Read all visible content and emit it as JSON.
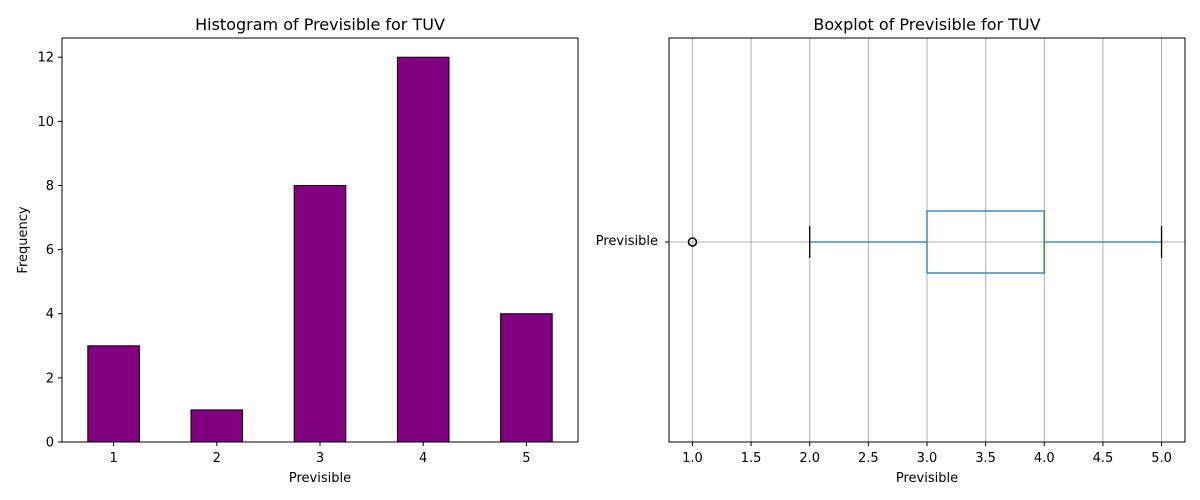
{
  "chart_data": [
    {
      "type": "bar",
      "title": "Histogram of Previsible for TUV",
      "xlabel": "Previsible",
      "ylabel": "Frequency",
      "categories": [
        "1",
        "2",
        "3",
        "4",
        "5"
      ],
      "values": [
        3,
        1,
        8,
        12,
        4
      ],
      "ylim": [
        0,
        12.6
      ],
      "yticks": [
        0,
        2,
        4,
        6,
        8,
        10,
        12
      ],
      "bar_color": "#800080",
      "edge_color": "#000000",
      "grid": false
    },
    {
      "type": "boxplot",
      "title": "Boxplot of Previsible for TUV",
      "xlabel": "Previsible",
      "category": "Previsible",
      "orientation": "horizontal",
      "whisker_low": 2.0,
      "q1": 3.0,
      "median": 4.0,
      "q3": 4.0,
      "whisker_high": 5.0,
      "outliers": [
        1.0
      ],
      "xlim": [
        0.8,
        5.2
      ],
      "xticks": [
        "1.0",
        "1.5",
        "2.0",
        "2.5",
        "3.0",
        "3.5",
        "4.0",
        "4.5",
        "5.0"
      ],
      "box_color": "#1f77b4",
      "median_color": "#2ca02c",
      "grid": true
    }
  ]
}
